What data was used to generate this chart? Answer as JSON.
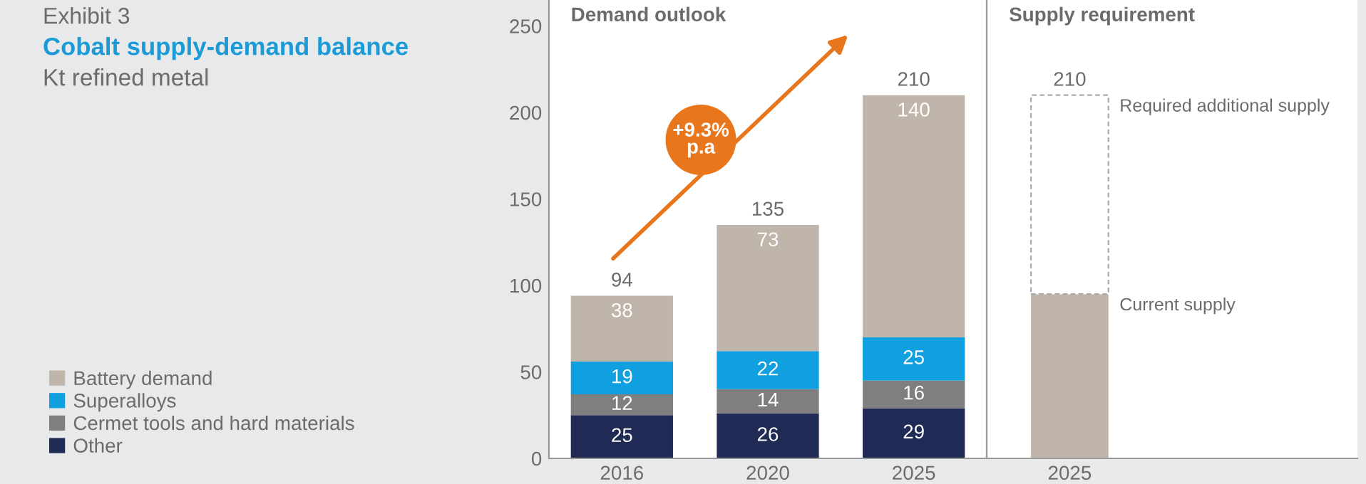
{
  "chart_data": [
    {
      "type": "bar",
      "stacked": true,
      "title": "Demand outlook",
      "annotations": [
        "Exhibit 3",
        "Cobalt supply-demand balance",
        "Kt refined metal",
        "+9.3%",
        "p.a"
      ],
      "categories": [
        "2016",
        "2020",
        "2025"
      ],
      "series": [
        {
          "name": "Other",
          "color": "#1f2a55",
          "values": [
            25,
            26,
            29
          ]
        },
        {
          "name": "Cermet tools and hard materials",
          "color": "#7f7f7f",
          "values": [
            12,
            14,
            16
          ]
        },
        {
          "name": "Superalloys",
          "color": "#109fdf",
          "values": [
            19,
            22,
            25
          ]
        },
        {
          "name": "Battery demand",
          "color": "#c0b5aa",
          "values": [
            38,
            73,
            140
          ]
        }
      ],
      "data_labels": true,
      "totals": [
        "94",
        "135",
        "210"
      ],
      "ylim": [
        0,
        265
      ],
      "yticks": [
        0,
        50,
        100,
        150,
        200,
        250
      ],
      "grid": false,
      "legend": "left"
    },
    {
      "type": "bar",
      "stacked": true,
      "title": "Supply requirement",
      "categories": [
        "2025"
      ],
      "series": [
        {
          "name": "Current supply",
          "color": "#c0b5aa",
          "values": [
            95
          ]
        },
        {
          "name": "Required additional supply",
          "color": "#ffffff",
          "line_style": "dashed",
          "values": [
            115
          ]
        }
      ],
      "totals": [
        "210"
      ],
      "ylim": [
        0,
        265
      ],
      "tick_labels": "x",
      "grid": false,
      "legend": false
    }
  ]
}
